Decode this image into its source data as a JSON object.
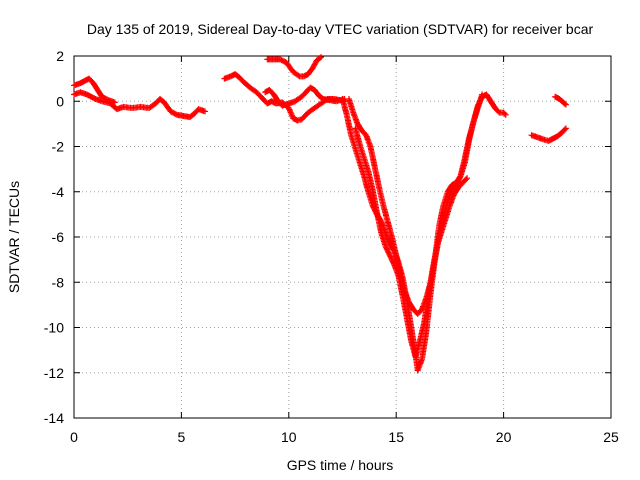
{
  "chart_data": {
    "type": "scatter",
    "title": "Day 135 of 2019, Sidereal Day-to-day VTEC variation (SDTVAR) for receiver bcar",
    "xlabel": "GPS time / hours",
    "ylabel": "SDTVAR / TECUs",
    "xlim": [
      0,
      25
    ],
    "ylim": [
      -14,
      2
    ],
    "x_ticks": [
      0,
      5,
      10,
      15,
      20,
      25
    ],
    "y_ticks": [
      2,
      0,
      -2,
      -4,
      -6,
      -8,
      -10,
      -12,
      -14
    ],
    "grid": true,
    "legend": "none",
    "marker": "plus",
    "series": [
      {
        "color": "#ff0000",
        "segments": [
          [
            [
              0.0,
              0.7
            ],
            [
              0.3,
              0.8
            ],
            [
              0.5,
              0.9
            ],
            [
              0.7,
              1.0
            ],
            [
              0.9,
              0.8
            ],
            [
              1.1,
              0.5
            ],
            [
              1.3,
              0.2
            ],
            [
              1.6,
              0.05
            ],
            [
              1.9,
              -0.05
            ]
          ],
          [
            [
              0.0,
              0.3
            ],
            [
              0.3,
              0.4
            ],
            [
              0.6,
              0.3
            ],
            [
              1.0,
              0.1
            ],
            [
              1.3,
              0.0
            ],
            [
              1.7,
              -0.1
            ],
            [
              2.0,
              -0.35
            ],
            [
              2.3,
              -0.25
            ],
            [
              2.7,
              -0.3
            ],
            [
              3.1,
              -0.25
            ],
            [
              3.5,
              -0.3
            ],
            [
              3.8,
              -0.1
            ],
            [
              4.0,
              0.1
            ],
            [
              4.2,
              -0.05
            ],
            [
              4.5,
              -0.45
            ],
            [
              4.8,
              -0.6
            ],
            [
              5.1,
              -0.65
            ],
            [
              5.4,
              -0.7
            ],
            [
              5.6,
              -0.55
            ],
            [
              5.8,
              -0.35
            ],
            [
              6.1,
              -0.45
            ]
          ],
          [
            [
              7.0,
              1.0
            ],
            [
              7.3,
              1.1
            ],
            [
              7.5,
              1.2
            ],
            [
              7.7,
              1.05
            ],
            [
              7.9,
              0.85
            ],
            [
              8.2,
              0.6
            ],
            [
              8.5,
              0.4
            ],
            [
              8.8,
              0.1
            ],
            [
              9.0,
              -0.1
            ],
            [
              9.2,
              0.0
            ],
            [
              9.4,
              -0.1
            ],
            [
              9.7,
              -0.05
            ],
            [
              10.0,
              -0.3
            ],
            [
              10.2,
              -0.75
            ],
            [
              10.4,
              -0.85
            ],
            [
              10.6,
              -0.8
            ],
            [
              10.9,
              -0.5
            ],
            [
              11.2,
              -0.3
            ],
            [
              11.5,
              -0.1
            ],
            [
              11.8,
              0.1
            ],
            [
              12.1,
              0.1
            ],
            [
              12.4,
              0.05
            ],
            [
              12.6,
              0.0
            ]
          ],
          [
            [
              8.9,
              0.4
            ],
            [
              9.1,
              0.5
            ],
            [
              9.3,
              0.3
            ],
            [
              9.5,
              0.0
            ],
            [
              9.7,
              -0.2
            ],
            [
              10.0,
              -0.1
            ],
            [
              10.3,
              0.0
            ],
            [
              10.6,
              0.2
            ],
            [
              10.8,
              0.4
            ],
            [
              11.0,
              0.6
            ],
            [
              11.2,
              0.5
            ],
            [
              11.4,
              0.25
            ],
            [
              11.6,
              0.1
            ],
            [
              11.9,
              0.05
            ],
            [
              12.2,
              0.0
            ],
            [
              12.6,
              0.1
            ]
          ],
          [
            [
              9.0,
              1.85
            ],
            [
              9.3,
              1.85
            ],
            [
              9.6,
              1.85
            ],
            [
              9.9,
              1.7
            ],
            [
              10.2,
              1.3
            ],
            [
              10.5,
              1.1
            ],
            [
              10.7,
              1.1
            ],
            [
              10.9,
              1.2
            ],
            [
              11.1,
              1.45
            ],
            [
              11.3,
              1.8
            ],
            [
              11.5,
              1.95
            ]
          ],
          [
            [
              12.5,
              0.1
            ],
            [
              12.7,
              -0.6
            ],
            [
              12.9,
              -1.5
            ],
            [
              13.1,
              -2.1
            ],
            [
              13.3,
              -2.7
            ],
            [
              13.5,
              -3.3
            ],
            [
              13.7,
              -4.0
            ],
            [
              13.9,
              -4.6
            ],
            [
              14.1,
              -5.0
            ],
            [
              14.3,
              -5.3
            ],
            [
              14.5,
              -5.8
            ],
            [
              14.7,
              -6.3
            ],
            [
              14.9,
              -6.6
            ],
            [
              15.1,
              -7.1
            ],
            [
              15.3,
              -7.8
            ],
            [
              15.5,
              -8.8
            ],
            [
              15.7,
              -10.0
            ],
            [
              15.9,
              -11.2
            ],
            [
              16.0,
              -11.9
            ],
            [
              16.2,
              -11.4
            ],
            [
              16.4,
              -10.2
            ],
            [
              16.6,
              -8.5
            ],
            [
              16.8,
              -7.0
            ],
            [
              17.0,
              -6.0
            ],
            [
              17.2,
              -5.2
            ],
            [
              17.4,
              -4.4
            ],
            [
              17.6,
              -3.9
            ],
            [
              17.8,
              -3.7
            ],
            [
              18.0,
              -3.3
            ],
            [
              18.2,
              -2.5
            ],
            [
              18.4,
              -1.6
            ],
            [
              18.6,
              -0.9
            ],
            [
              18.8,
              -0.2
            ],
            [
              19.0,
              0.2
            ],
            [
              19.2,
              0.3
            ],
            [
              19.4,
              0.0
            ],
            [
              19.6,
              -0.3
            ],
            [
              19.8,
              -0.5
            ],
            [
              20.0,
              -0.5
            ],
            [
              20.1,
              -0.6
            ]
          ],
          [
            [
              12.8,
              0.1
            ],
            [
              13.0,
              -0.5
            ],
            [
              13.2,
              -1.0
            ],
            [
              13.4,
              -1.3
            ],
            [
              13.6,
              -1.5
            ],
            [
              13.8,
              -2.0
            ],
            [
              14.0,
              -2.9
            ],
            [
              14.2,
              -3.8
            ],
            [
              14.4,
              -4.6
            ],
            [
              14.6,
              -5.3
            ],
            [
              14.8,
              -6.0
            ],
            [
              15.0,
              -6.8
            ],
            [
              15.2,
              -7.7
            ],
            [
              15.4,
              -8.4
            ],
            [
              15.6,
              -8.9
            ],
            [
              15.8,
              -9.2
            ],
            [
              16.0,
              -9.4
            ],
            [
              16.2,
              -9.2
            ],
            [
              16.4,
              -8.7
            ],
            [
              16.6,
              -8.0
            ],
            [
              16.8,
              -7.0
            ],
            [
              17.0,
              -5.5
            ],
            [
              17.2,
              -4.6
            ],
            [
              17.4,
              -4.0
            ],
            [
              17.6,
              -3.7
            ],
            [
              17.8,
              -3.6
            ],
            [
              18.0,
              -3.3
            ],
            [
              18.2,
              -2.7
            ],
            [
              18.4,
              -1.7
            ],
            [
              18.6,
              -0.9
            ],
            [
              18.8,
              -0.3
            ],
            [
              19.0,
              0.3
            ]
          ],
          [
            [
              13.1,
              -1.2
            ],
            [
              13.3,
              -1.9
            ],
            [
              13.5,
              -2.5
            ],
            [
              13.7,
              -3.1
            ],
            [
              13.9,
              -3.9
            ],
            [
              14.1,
              -4.9
            ],
            [
              14.3,
              -5.8
            ],
            [
              14.5,
              -6.4
            ],
            [
              14.7,
              -6.8
            ],
            [
              14.9,
              -7.2
            ],
            [
              15.1,
              -7.7
            ],
            [
              15.3,
              -8.6
            ],
            [
              15.5,
              -9.6
            ],
            [
              15.7,
              -10.6
            ],
            [
              15.9,
              -11.3
            ],
            [
              16.1,
              -10.6
            ],
            [
              16.3,
              -9.8
            ],
            [
              16.5,
              -8.6
            ],
            [
              16.7,
              -7.4
            ],
            [
              16.9,
              -6.4
            ],
            [
              17.1,
              -5.8
            ],
            [
              17.3,
              -5.2
            ],
            [
              17.5,
              -4.6
            ],
            [
              17.7,
              -4.1
            ],
            [
              17.9,
              -3.8
            ],
            [
              18.1,
              -3.6
            ],
            [
              18.3,
              -3.4
            ]
          ],
          [
            [
              21.3,
              -1.5
            ],
            [
              21.6,
              -1.6
            ],
            [
              21.9,
              -1.7
            ],
            [
              22.1,
              -1.75
            ],
            [
              22.3,
              -1.65
            ],
            [
              22.5,
              -1.55
            ],
            [
              22.7,
              -1.4
            ],
            [
              22.9,
              -1.2
            ]
          ],
          [
            [
              22.4,
              0.2
            ],
            [
              22.6,
              0.1
            ],
            [
              22.9,
              -0.15
            ]
          ]
        ]
      }
    ]
  }
}
